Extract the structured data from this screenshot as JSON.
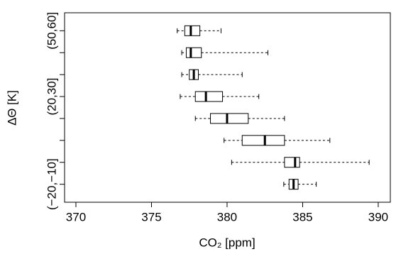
{
  "chart_data": {
    "type": "boxplot",
    "orientation": "horizontal",
    "x_label": "CO₂ [ppm]",
    "y_label": "ΔΘ [K]",
    "categories": [
      "(−20,−10]",
      null,
      null,
      null,
      "(20,30]",
      null,
      null,
      "(50,60]"
    ],
    "whisker_low": [
      383.75,
      380.3,
      379.8,
      377.9,
      376.9,
      377.0,
      377.0,
      376.7
    ],
    "q1": [
      384.1,
      383.8,
      381.0,
      378.9,
      377.9,
      377.5,
      377.3,
      377.2
    ],
    "median": [
      384.4,
      384.5,
      382.5,
      380.0,
      378.6,
      377.8,
      377.6,
      377.6
    ],
    "q3": [
      384.7,
      384.8,
      383.8,
      381.4,
      379.7,
      378.1,
      378.3,
      378.2
    ],
    "whisker_high": [
      385.9,
      389.4,
      386.8,
      383.8,
      382.1,
      381.0,
      382.7,
      379.6
    ],
    "color": "#000000",
    "xlim": [
      369.25,
      390.8
    ],
    "xticks": [
      370,
      375,
      380,
      385,
      390
    ]
  }
}
